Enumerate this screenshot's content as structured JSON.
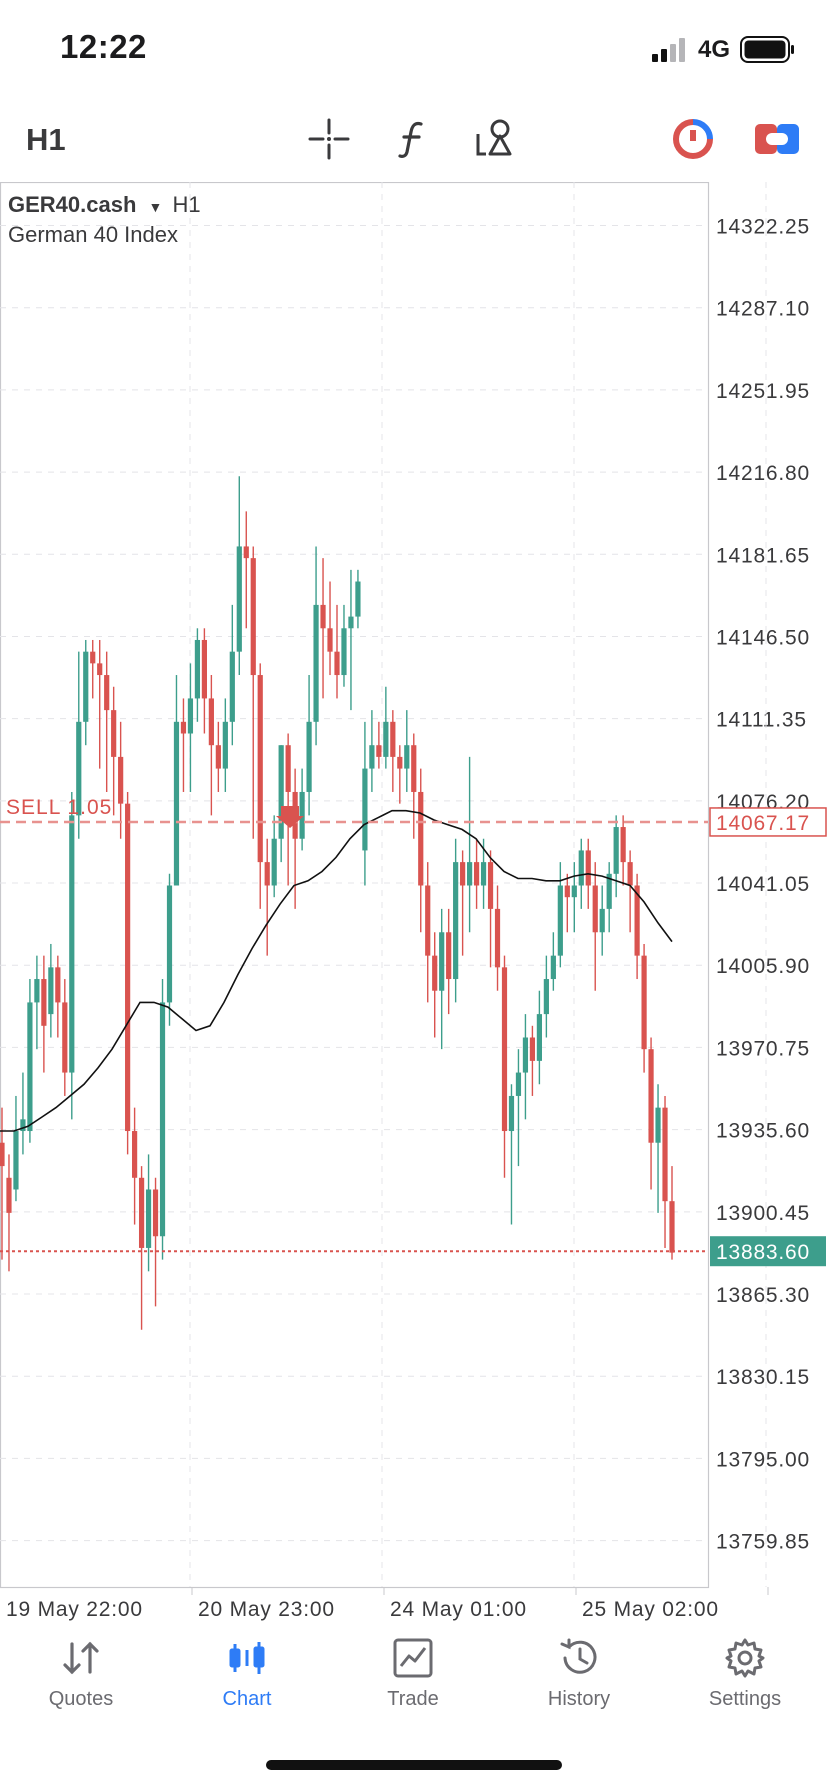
{
  "status_bar": {
    "time": "12:22",
    "network": "4G"
  },
  "toolbar": {
    "timeframe": "H1",
    "icons": [
      "crosshair-icon",
      "function-icon",
      "objects-icon",
      "analytics-icon",
      "trade-toggle-icon"
    ]
  },
  "chart": {
    "symbol": "GER40.cash",
    "symbol_arrow": "▼",
    "timeframe": "H1",
    "description": "German 40 Index",
    "sell_line_label": "SELL 1.05",
    "colors": {
      "bull": "#3d9e8c",
      "bear": "#d9534f",
      "ma": "#111111",
      "grid": "#e4e4e8"
    }
  },
  "chart_data": {
    "type": "candlestick",
    "y_ticks": [
      "14322.25",
      "14287.10",
      "14251.95",
      "14216.80",
      "14181.65",
      "14146.50",
      "14111.35",
      "14076.20",
      "14041.05",
      "14005.90",
      "13970.75",
      "13935.60",
      "13900.45",
      "13865.30",
      "13830.15",
      "13795.00",
      "13759.85"
    ],
    "x_ticks": [
      "19 May 22:00",
      "20 May 23:00",
      "24 May 01:00",
      "25 May 02:00"
    ],
    "sell_price": "14067.17",
    "current_price": "13883.60",
    "candles": [
      [
        13930,
        13920,
        13945,
        13880
      ],
      [
        13915,
        13900,
        13925,
        13875
      ],
      [
        13910,
        13935,
        13950,
        13905
      ],
      [
        13935,
        13940,
        13960,
        13925
      ],
      [
        13935,
        13990,
        14000,
        13930
      ],
      [
        13990,
        14000,
        14010,
        13970
      ],
      [
        14000,
        13980,
        14010,
        13960
      ],
      [
        13985,
        14005,
        14015,
        13975
      ],
      [
        14005,
        13990,
        14010,
        13975
      ],
      [
        13990,
        13960,
        14000,
        13950
      ],
      [
        13960,
        14070,
        14080,
        13940
      ],
      [
        14070,
        14110,
        14140,
        14060
      ],
      [
        14110,
        14140,
        14145,
        14100
      ],
      [
        14140,
        14135,
        14145,
        14120
      ],
      [
        14135,
        14130,
        14145,
        14090
      ],
      [
        14130,
        14115,
        14140,
        14080
      ],
      [
        14115,
        14095,
        14125,
        14070
      ],
      [
        14095,
        14075,
        14110,
        14060
      ],
      [
        14075,
        13935,
        14080,
        13925
      ],
      [
        13935,
        13915,
        13945,
        13895
      ],
      [
        13915,
        13885,
        13920,
        13850
      ],
      [
        13885,
        13910,
        13925,
        13875
      ],
      [
        13910,
        13890,
        13915,
        13860
      ],
      [
        13890,
        13990,
        14000,
        13880
      ],
      [
        13990,
        14040,
        14045,
        13980
      ],
      [
        14040,
        14110,
        14130,
        14080
      ],
      [
        14110,
        14105,
        14120,
        14080
      ],
      [
        14105,
        14120,
        14135,
        14080
      ],
      [
        14120,
        14145,
        14150,
        14110
      ],
      [
        14145,
        14120,
        14150,
        14105
      ],
      [
        14120,
        14100,
        14130,
        14070
      ],
      [
        14100,
        14090,
        14110,
        14080
      ],
      [
        14090,
        14110,
        14120,
        14080
      ],
      [
        14110,
        14140,
        14160,
        14100
      ],
      [
        14140,
        14185,
        14215,
        14130
      ],
      [
        14185,
        14180,
        14200,
        14150
      ],
      [
        14180,
        14130,
        14185,
        14060
      ],
      [
        14130,
        14050,
        14135,
        14030
      ],
      [
        14050,
        14040,
        14060,
        14010
      ],
      [
        14040,
        14060,
        14070,
        14035
      ],
      [
        14060,
        14100,
        14100,
        14050
      ],
      [
        14100,
        14080,
        14105,
        14040
      ],
      [
        14080,
        14060,
        14090,
        14030
      ],
      [
        14060,
        14080,
        14090,
        14055
      ],
      [
        14080,
        14110,
        14130,
        14070
      ],
      [
        14110,
        14160,
        14185,
        14100
      ],
      [
        14160,
        14150,
        14180,
        14120
      ],
      [
        14150,
        14140,
        14170,
        14130
      ],
      [
        14140,
        14130,
        14160,
        14120
      ],
      [
        14130,
        14150,
        14160,
        14125
      ],
      [
        14150,
        14155,
        14175,
        14115
      ],
      [
        14155,
        14170,
        14175,
        14150
      ],
      [
        14055,
        14090,
        14110,
        14040
      ],
      [
        14090,
        14100,
        14115,
        14080
      ],
      [
        14100,
        14095,
        14110,
        14090
      ],
      [
        14095,
        14110,
        14125,
        14090
      ],
      [
        14110,
        14095,
        14115,
        14080
      ],
      [
        14095,
        14090,
        14100,
        14075
      ],
      [
        14090,
        14100,
        14115,
        14080
      ],
      [
        14100,
        14080,
        14105,
        14060
      ],
      [
        14080,
        14040,
        14090,
        14020
      ],
      [
        14040,
        14010,
        14050,
        13990
      ],
      [
        14010,
        13995,
        14020,
        13975
      ],
      [
        13995,
        14020,
        14030,
        13970
      ],
      [
        14020,
        14000,
        14030,
        13985
      ],
      [
        14000,
        14050,
        14060,
        13990
      ],
      [
        14050,
        14040,
        14055,
        14010
      ],
      [
        14040,
        14050,
        14095,
        14020
      ],
      [
        14050,
        14040,
        14060,
        14030
      ],
      [
        14040,
        14050,
        14060,
        14030
      ],
      [
        14050,
        14030,
        14055,
        14005
      ],
      [
        14030,
        14005,
        14040,
        13995
      ],
      [
        14005,
        13935,
        14010,
        13915
      ],
      [
        13935,
        13950,
        13955,
        13895
      ],
      [
        13950,
        13960,
        13970,
        13920
      ],
      [
        13960,
        13975,
        13985,
        13940
      ],
      [
        13975,
        13965,
        13980,
        13950
      ],
      [
        13965,
        13985,
        13995,
        13955
      ],
      [
        13985,
        14000,
        14010,
        13975
      ],
      [
        14000,
        14010,
        14020,
        13995
      ],
      [
        14010,
        14040,
        14050,
        14005
      ],
      [
        14040,
        14035,
        14045,
        14020
      ],
      [
        14035,
        14040,
        14050,
        14020
      ],
      [
        14040,
        14055,
        14060,
        14030
      ],
      [
        14055,
        14040,
        14060,
        14030
      ],
      [
        14040,
        14020,
        14050,
        13995
      ],
      [
        14020,
        14030,
        14040,
        14010
      ],
      [
        14030,
        14045,
        14050,
        14020
      ],
      [
        14045,
        14065,
        14070,
        14035
      ],
      [
        14065,
        14050,
        14070,
        14040
      ],
      [
        14050,
        14040,
        14055,
        14020
      ],
      [
        14040,
        14010,
        14045,
        14000
      ],
      [
        14010,
        13970,
        14015,
        13960
      ],
      [
        13970,
        13930,
        13975,
        13910
      ],
      [
        13930,
        13945,
        13955,
        13900
      ],
      [
        13945,
        13905,
        13950,
        13885
      ],
      [
        13905,
        13883,
        13920,
        13880
      ]
    ],
    "ma_points": [
      13935,
      13935,
      13937,
      13941,
      13945,
      13950,
      13955,
      13962,
      13970,
      13980,
      13990,
      13990,
      13988,
      13983,
      13978,
      13980,
      13990,
      14002,
      14013,
      14023,
      14032,
      14040,
      14042,
      14046,
      14052,
      14060,
      14066,
      14069,
      14072,
      14072,
      14071,
      14068,
      14066,
      14064,
      14060,
      14052,
      14046,
      14043,
      14043,
      14042,
      14042,
      14044,
      14045,
      14044,
      14042,
      14040,
      14033,
      14024,
      14016
    ]
  },
  "tabs": [
    {
      "key": "quotes",
      "label": "Quotes",
      "active": false
    },
    {
      "key": "chart",
      "label": "Chart",
      "active": true
    },
    {
      "key": "trade",
      "label": "Trade",
      "active": false
    },
    {
      "key": "history",
      "label": "History",
      "active": false
    },
    {
      "key": "settings",
      "label": "Settings",
      "active": false
    }
  ]
}
